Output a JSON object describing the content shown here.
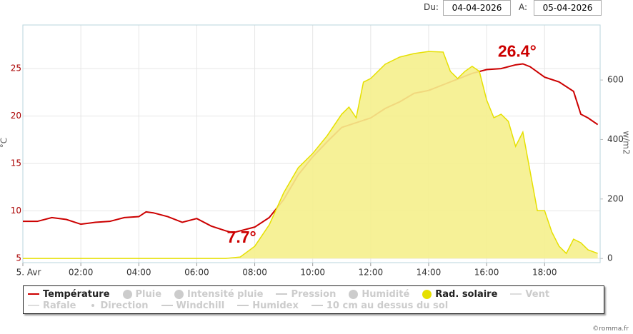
{
  "header": {
    "from_label": "Du:",
    "from_date": "04-04-2026",
    "to_label": "A:",
    "to_date": "05-04-2026"
  },
  "credit": "©romma.fr",
  "chart_data": {
    "type": "line",
    "y_label": "°C",
    "y2_label": "w/m2",
    "xlim": [
      "00:00",
      "19:55"
    ],
    "xticks": [
      {
        "value": "00:00",
        "label": "5. Avr"
      },
      "02:00",
      "04:00",
      "06:00",
      "08:00",
      "10:00",
      "12:00",
      "14:00",
      "16:00",
      "18:00"
    ],
    "ylim": [
      4.55,
      29.6
    ],
    "yticks": [
      5,
      10,
      15,
      20,
      25
    ],
    "y2lim": [
      -14,
      785
    ],
    "y2ticks": [
      0,
      200,
      400,
      600
    ],
    "grid": true,
    "annotations": [
      {
        "text": "7.7°",
        "at": "min"
      },
      {
        "text": "26.4°",
        "at": "max"
      }
    ],
    "series": [
      {
        "name": "Température",
        "color": "#cc0000",
        "symbol": "line",
        "visible": true,
        "x": [
          "00:00",
          "00:30",
          "01:00",
          "01:30",
          "02:00",
          "02:30",
          "03:00",
          "03:30",
          "04:00",
          "04:15",
          "04:30",
          "05:00",
          "05:30",
          "06:00",
          "06:30",
          "07:00",
          "07:15",
          "07:30",
          "08:00",
          "08:30",
          "09:00",
          "09:30",
          "10:00",
          "10:30",
          "11:00",
          "11:30",
          "12:00",
          "12:30",
          "13:00",
          "13:30",
          "14:00",
          "14:30",
          "15:00",
          "15:30",
          "16:00",
          "16:30",
          "17:00",
          "17:15",
          "17:30",
          "18:00",
          "18:30",
          "19:00",
          "19:15",
          "19:30",
          "19:50"
        ],
        "values": [
          8.9,
          8.9,
          9.3,
          9.1,
          8.6,
          8.8,
          8.9,
          9.3,
          9.4,
          9.9,
          9.8,
          9.4,
          8.8,
          9.2,
          8.4,
          7.9,
          7.7,
          7.9,
          8.3,
          9.3,
          11.2,
          13.8,
          15.7,
          17.3,
          18.8,
          19.3,
          19.8,
          20.8,
          21.5,
          22.4,
          22.7,
          23.3,
          23.9,
          24.5,
          24.9,
          25.0,
          25.4,
          25.5,
          25.2,
          24.1,
          23.6,
          22.6,
          20.2,
          19.8,
          19.1
        ]
      },
      {
        "name": "Pluie",
        "color": "#cccccc",
        "symbol": "circle",
        "visible": false
      },
      {
        "name": "Intensité pluie",
        "color": "#cccccc",
        "symbol": "circle",
        "visible": false
      },
      {
        "name": "Pression",
        "color": "#cccccc",
        "symbol": "line",
        "visible": false
      },
      {
        "name": "Humidité",
        "color": "#cccccc",
        "symbol": "circle",
        "visible": false
      },
      {
        "name": "Rad. solaire",
        "color": "#e6e000",
        "fill": "#f5f08c",
        "symbol": "circle",
        "visible": true,
        "axis": "y2",
        "kind": "area",
        "x": [
          "00:00",
          "07:00",
          "07:30",
          "08:00",
          "08:30",
          "09:00",
          "09:30",
          "10:00",
          "10:30",
          "11:00",
          "11:15",
          "11:30",
          "11:45",
          "12:00",
          "12:30",
          "13:00",
          "13:30",
          "14:00",
          "14:30",
          "14:45",
          "15:00",
          "15:15",
          "15:30",
          "15:45",
          "16:00",
          "16:15",
          "16:30",
          "16:45",
          "17:00",
          "17:15",
          "17:30",
          "17:45",
          "18:00",
          "18:15",
          "18:30",
          "18:45",
          "19:00",
          "19:15",
          "19:30",
          "19:50"
        ],
        "values": [
          0,
          0,
          5,
          41,
          113,
          221,
          305,
          353,
          413,
          485,
          509,
          473,
          593,
          605,
          653,
          677,
          689,
          696,
          694,
          629,
          605,
          629,
          646,
          629,
          533,
          473,
          485,
          461,
          377,
          425,
          293,
          161,
          161,
          89,
          41,
          17,
          65,
          53,
          29,
          17
        ]
      },
      {
        "name": "Vent",
        "color": "#dddddd",
        "symbol": "line",
        "visible": false
      },
      {
        "name": "Rafale",
        "color": "#dddddd",
        "symbol": "line",
        "visible": false
      },
      {
        "name": "Direction",
        "color": "#cccccc",
        "symbol": "dot",
        "visible": false
      },
      {
        "name": "Windchill",
        "color": "#cccccc",
        "symbol": "line",
        "visible": false
      },
      {
        "name": "Humidex",
        "color": "#cccccc",
        "symbol": "line",
        "visible": false
      },
      {
        "name": "10 cm au dessus du sol",
        "color": "#cccccc",
        "symbol": "line",
        "visible": false
      }
    ]
  }
}
